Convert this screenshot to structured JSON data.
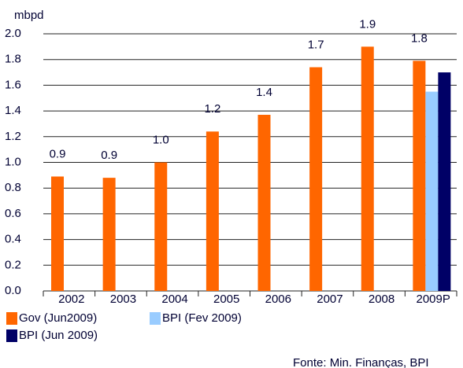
{
  "chart_data": {
    "type": "bar",
    "unit_label": "mbpd",
    "categories": [
      "2002",
      "2003",
      "2004",
      "2005",
      "2006",
      "2007",
      "2008",
      "2009P"
    ],
    "series": [
      {
        "name": "Gov (Jun2009)",
        "color": "#ff6600",
        "values": [
          0.89,
          0.88,
          1.0,
          1.24,
          1.37,
          1.74,
          1.9,
          1.79
        ],
        "value_labels": [
          "0.9",
          "0.9",
          "1.0",
          "1.2",
          "1.4",
          "1.7",
          "1.9",
          "1.8"
        ]
      },
      {
        "name": "BPI (Fev 2009)",
        "color": "#99ccff",
        "values": [
          null,
          null,
          null,
          null,
          null,
          null,
          null,
          1.55
        ]
      },
      {
        "name": "BPI (Jun 2009)",
        "color": "#000066",
        "values": [
          null,
          null,
          null,
          null,
          null,
          null,
          null,
          1.7
        ]
      }
    ],
    "ylim": [
      0,
      2
    ],
    "yticks": [
      {
        "value": 0,
        "label": "0.0"
      },
      0.2,
      0.4,
      0.6,
      0.8,
      {
        "value": 1,
        "label": "1.0"
      },
      1.2,
      1.4,
      1.6,
      1.8,
      {
        "value": 2,
        "label": "2.0"
      }
    ],
    "grid": true,
    "source": "Fonte: Min. Finanças, BPI"
  }
}
